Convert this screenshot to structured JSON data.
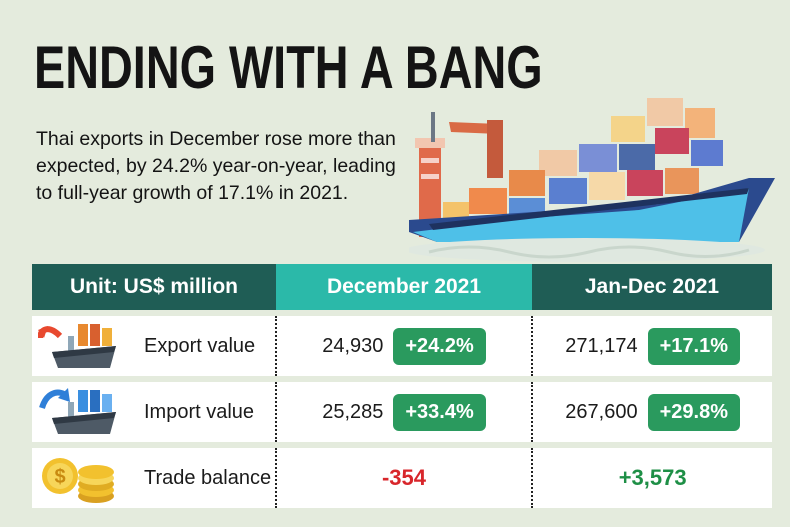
{
  "title": "ENDING WITH A BANG",
  "subtitle": "Thai exports in December rose more than expected, by 24.2% year-on-year, leading to full-year growth of 17.1% in 2021.",
  "table": {
    "headers": [
      "Unit: US$ million",
      "December 2021",
      "Jan-Dec 2021"
    ],
    "rows": [
      {
        "label": "Export value",
        "icon": "export-ship-icon",
        "dec_value": "24,930",
        "dec_change": "+24.2%",
        "year_value": "271,174",
        "year_change": "+17.1%"
      },
      {
        "label": "Import value",
        "icon": "import-ship-icon",
        "dec_value": "25,285",
        "dec_change": "+33.4%",
        "year_value": "267,600",
        "year_change": "+29.8%"
      },
      {
        "label": "Trade balance",
        "icon": "coins-icon",
        "dec_value": "-354",
        "year_value": "+3,573"
      }
    ]
  },
  "colors": {
    "background": "#e4ebdd",
    "header_dark": "#1f5d55",
    "header_teal": "#2bb9a9",
    "badge_green": "#2a9a5e",
    "negative_red": "#d8262b",
    "positive_green": "#1e8f46"
  }
}
